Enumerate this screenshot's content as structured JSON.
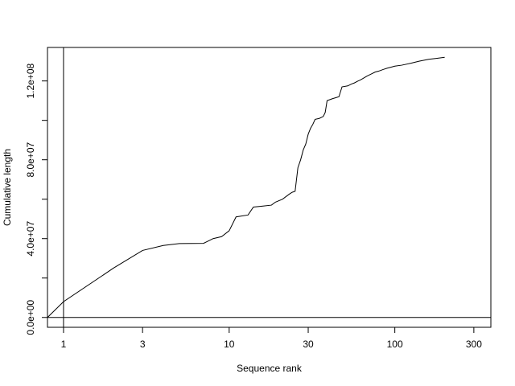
{
  "chart_data": {
    "type": "line",
    "title": "",
    "xlabel": "Sequence rank",
    "ylabel": "Cumulative length",
    "x_scale": "log",
    "xlim": [
      0.8,
      380
    ],
    "ylim": [
      -5000000,
      137000000
    ],
    "x_ticks": [
      {
        "value": 1,
        "label": "1"
      },
      {
        "value": 3,
        "label": "3"
      },
      {
        "value": 10,
        "label": "10"
      },
      {
        "value": 30,
        "label": "30"
      },
      {
        "value": 100,
        "label": "100"
      },
      {
        "value": 300,
        "label": "300"
      }
    ],
    "y_ticks": [
      {
        "value": 0,
        "label": "0.0e+00"
      },
      {
        "value": 20000000,
        "label": ""
      },
      {
        "value": 40000000,
        "label": "4.0e+07"
      },
      {
        "value": 60000000,
        "label": ""
      },
      {
        "value": 80000000,
        "label": "8.0e+07"
      },
      {
        "value": 100000000,
        "label": ""
      },
      {
        "value": 120000000,
        "label": "1.2e+08"
      }
    ],
    "reference_lines": {
      "vertical_x": 1,
      "horizontal_y": 0
    },
    "grid": false,
    "legend": "none",
    "series": [
      {
        "color": "#000000",
        "x": [
          0.8,
          1,
          2,
          3,
          4,
          5,
          7,
          8,
          9,
          10,
          11,
          13,
          14,
          16,
          18,
          19,
          21,
          23,
          24,
          25,
          26,
          27,
          28,
          29,
          30,
          31,
          32,
          33,
          35,
          37,
          38,
          39,
          42,
          44,
          46,
          48,
          52,
          55,
          57,
          60,
          62,
          65,
          68,
          72,
          76,
          80,
          85,
          90,
          95,
          100,
          110,
          125,
          140,
          160,
          180,
          200
        ],
        "y": [
          0,
          8000000,
          25000000,
          34000000,
          36500000,
          37500000,
          37600000,
          40000000,
          41000000,
          44000000,
          51000000,
          52000000,
          56000000,
          56500000,
          57000000,
          58500000,
          60000000,
          62500000,
          63500000,
          64000000,
          76000000,
          80000000,
          85000000,
          88000000,
          93000000,
          96000000,
          98000000,
          100500000,
          101000000,
          102000000,
          104000000,
          110000000,
          111000000,
          111500000,
          112000000,
          117000000,
          117500000,
          118500000,
          119000000,
          120000000,
          120500000,
          121500000,
          122500000,
          123500000,
          124500000,
          125000000,
          125800000,
          126500000,
          127000000,
          127500000,
          128000000,
          129000000,
          130000000,
          131000000,
          131500000,
          132000000
        ]
      }
    ]
  }
}
